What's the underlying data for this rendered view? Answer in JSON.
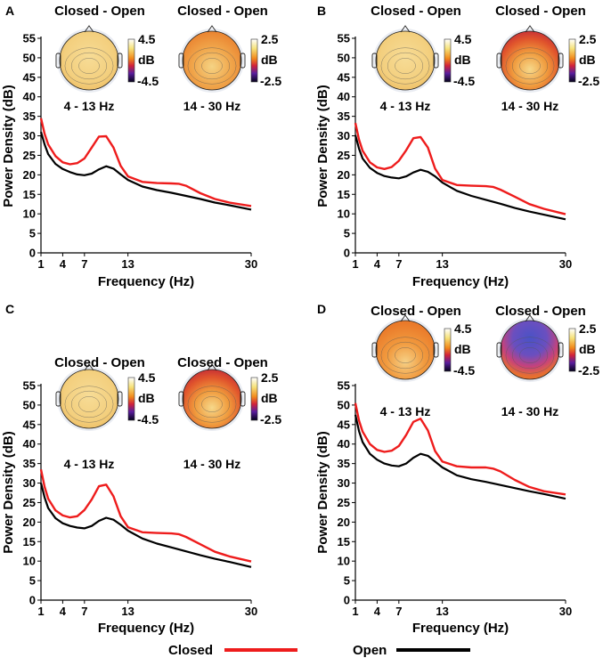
{
  "figure": {
    "legend": [
      {
        "label": "Closed",
        "color": "#ee1c1c"
      },
      {
        "label": "Open",
        "color": "#000000"
      }
    ]
  },
  "chart_data": [
    {
      "type": "line",
      "panel": "A",
      "xlabel": "Frequency (Hz)",
      "ylabel": "Power Density (dB)",
      "xlim": [
        1,
        30
      ],
      "ylim": [
        0,
        55
      ],
      "xticks": [
        1,
        4,
        7,
        13,
        30
      ],
      "yticks": [
        0,
        5,
        10,
        15,
        20,
        25,
        30,
        35,
        40,
        45,
        50,
        55
      ],
      "series": [
        {
          "name": "Closed",
          "color": "#ee1c1c",
          "x": [
            1,
            1.5,
            2,
            3,
            4,
            5,
            6,
            7,
            8,
            9,
            10,
            11,
            12,
            13,
            15,
            17,
            19,
            20,
            21,
            23,
            25,
            27,
            30
          ],
          "y": [
            34.5,
            30.5,
            27.8,
            24.8,
            23.2,
            22.7,
            23.0,
            24.2,
            27.0,
            29.8,
            29.9,
            27.0,
            22.3,
            19.6,
            18.2,
            17.9,
            17.8,
            17.7,
            17.2,
            15.3,
            13.8,
            12.9,
            12.0
          ]
        },
        {
          "name": "Open",
          "color": "#000000",
          "x": [
            1,
            1.5,
            2,
            3,
            4,
            5,
            6,
            7,
            8,
            9,
            10,
            11,
            12,
            13,
            15,
            17,
            19,
            21,
            23,
            25,
            27,
            30
          ],
          "y": [
            31.0,
            27.8,
            25.3,
            22.8,
            21.5,
            20.7,
            20.1,
            19.9,
            20.3,
            21.4,
            22.2,
            21.6,
            20.1,
            18.7,
            17.0,
            16.1,
            15.4,
            14.6,
            13.8,
            12.9,
            12.2,
            11.1
          ]
        }
      ],
      "topomaps": [
        {
          "title": "Closed - Open",
          "band": "4 - 13 Hz",
          "cbar_max": "4.5",
          "cbar_min": "-4.5",
          "cbar_unit": "dB",
          "style": "light"
        },
        {
          "title": "Closed - Open",
          "band": "14 - 30 Hz",
          "cbar_max": "2.5",
          "cbar_min": "-2.5",
          "cbar_unit": "dB",
          "style": "warm"
        }
      ]
    },
    {
      "type": "line",
      "panel": "B",
      "xlabel": "Frequency (Hz)",
      "ylabel": "Power Density (dB)",
      "xlim": [
        1,
        30
      ],
      "ylim": [
        0,
        55
      ],
      "xticks": [
        1,
        4,
        7,
        13,
        30
      ],
      "yticks": [
        0,
        5,
        10,
        15,
        20,
        25,
        30,
        35,
        40,
        45,
        50,
        55
      ],
      "series": [
        {
          "name": "Closed",
          "color": "#ee1c1c",
          "x": [
            1,
            1.5,
            2,
            3,
            4,
            5,
            6,
            7,
            8,
            9,
            10,
            11,
            12,
            13,
            15,
            17,
            19,
            20,
            21,
            23,
            25,
            27,
            30
          ],
          "y": [
            33.3,
            29.0,
            26.2,
            23.2,
            21.9,
            21.5,
            22.0,
            23.6,
            26.3,
            29.4,
            29.7,
            27.0,
            21.6,
            18.7,
            17.4,
            17.2,
            17.1,
            16.9,
            16.2,
            14.4,
            12.5,
            11.3,
            9.9
          ]
        },
        {
          "name": "Open",
          "color": "#000000",
          "x": [
            1,
            1.5,
            2,
            3,
            4,
            5,
            6,
            7,
            8,
            9,
            10,
            11,
            12,
            13,
            15,
            17,
            19,
            21,
            23,
            25,
            27,
            30
          ],
          "y": [
            30.2,
            26.7,
            24.2,
            21.8,
            20.5,
            19.7,
            19.3,
            19.1,
            19.6,
            20.6,
            21.3,
            20.8,
            19.6,
            18.0,
            15.9,
            14.6,
            13.6,
            12.6,
            11.5,
            10.6,
            9.8,
            8.6
          ]
        }
      ],
      "topomaps": [
        {
          "title": "Closed - Open",
          "band": "4 - 13 Hz",
          "cbar_max": "4.5",
          "cbar_min": "-4.5",
          "cbar_unit": "dB",
          "style": "light"
        },
        {
          "title": "Closed - Open",
          "band": "14 - 30 Hz",
          "cbar_max": "2.5",
          "cbar_min": "-2.5",
          "cbar_unit": "dB",
          "style": "hot"
        }
      ]
    },
    {
      "type": "line",
      "panel": "C",
      "xlabel": "Frequency (Hz)",
      "ylabel": "Power Density (dB)",
      "xlim": [
        1,
        30
      ],
      "ylim": [
        0,
        55
      ],
      "xticks": [
        1,
        4,
        7,
        13,
        30
      ],
      "yticks": [
        0,
        5,
        10,
        15,
        20,
        25,
        30,
        35,
        40,
        45,
        50,
        55
      ],
      "series": [
        {
          "name": "Closed",
          "color": "#ee1c1c",
          "x": [
            1,
            1.5,
            2,
            3,
            4,
            5,
            6,
            7,
            8,
            9,
            10,
            11,
            12,
            13,
            15,
            17,
            19,
            20,
            21,
            23,
            25,
            27,
            30
          ],
          "y": [
            33.5,
            29.0,
            26.0,
            23.0,
            21.7,
            21.2,
            21.5,
            23.1,
            25.8,
            29.2,
            29.6,
            26.6,
            21.5,
            18.7,
            17.4,
            17.2,
            17.1,
            16.9,
            16.2,
            14.3,
            12.4,
            11.2,
            9.9
          ]
        },
        {
          "name": "Open",
          "color": "#000000",
          "x": [
            1,
            1.5,
            2,
            3,
            4,
            5,
            6,
            7,
            8,
            9,
            10,
            11,
            12,
            13,
            15,
            17,
            19,
            21,
            23,
            25,
            27,
            30
          ],
          "y": [
            30.0,
            26.3,
            23.6,
            21.0,
            19.7,
            19.0,
            18.6,
            18.4,
            19.0,
            20.3,
            21.1,
            20.6,
            19.3,
            17.8,
            15.8,
            14.5,
            13.5,
            12.5,
            11.5,
            10.6,
            9.8,
            8.5
          ]
        }
      ],
      "topomaps": [
        {
          "title": "Closed - Open",
          "band": "4 - 13 Hz",
          "cbar_max": "4.5",
          "cbar_min": "-4.5",
          "cbar_unit": "dB",
          "style": "light"
        },
        {
          "title": "Closed - Open",
          "band": "14 - 30 Hz",
          "cbar_max": "2.5",
          "cbar_min": "-2.5",
          "cbar_unit": "dB",
          "style": "hot"
        }
      ]
    },
    {
      "type": "line",
      "panel": "D",
      "xlabel": "Frequency (Hz)",
      "ylabel": "Power Density (dB)",
      "xlim": [
        1,
        30
      ],
      "ylim": [
        0,
        55
      ],
      "xticks": [
        1,
        4,
        7,
        13,
        30
      ],
      "yticks": [
        0,
        5,
        10,
        15,
        20,
        25,
        30,
        35,
        40,
        45,
        50,
        55
      ],
      "series": [
        {
          "name": "Closed",
          "color": "#ee1c1c",
          "x": [
            1,
            1.5,
            2,
            3,
            4,
            5,
            6,
            7,
            8,
            9,
            10,
            11,
            12,
            13,
            15,
            17,
            19,
            20,
            21,
            23,
            25,
            27,
            30
          ],
          "y": [
            50.5,
            46.0,
            43.2,
            40.0,
            38.5,
            38.0,
            38.3,
            39.5,
            42.3,
            45.7,
            46.5,
            43.5,
            38.2,
            35.5,
            34.3,
            34.0,
            34.0,
            33.7,
            33.0,
            30.8,
            29.0,
            27.9,
            27.1
          ]
        },
        {
          "name": "Open",
          "color": "#000000",
          "x": [
            1,
            1.5,
            2,
            3,
            4,
            5,
            6,
            7,
            8,
            9,
            10,
            11,
            12,
            13,
            15,
            17,
            19,
            21,
            23,
            25,
            27,
            30
          ],
          "y": [
            47.5,
            43.3,
            40.5,
            37.5,
            36.0,
            35.0,
            34.5,
            34.3,
            35.0,
            36.5,
            37.5,
            37.0,
            35.5,
            34.0,
            32.0,
            31.0,
            30.3,
            29.5,
            28.7,
            27.9,
            27.2,
            26.0
          ]
        }
      ],
      "topomaps": [
        {
          "title": "Closed - Open",
          "band": "4 - 13 Hz",
          "cbar_max": "4.5",
          "cbar_min": "-4.5",
          "cbar_unit": "dB",
          "style": "orange"
        },
        {
          "title": "Closed - Open",
          "band": "14 - 30 Hz",
          "cbar_max": "2.5",
          "cbar_min": "-2.5",
          "cbar_unit": "dB",
          "style": "blue"
        }
      ]
    }
  ]
}
